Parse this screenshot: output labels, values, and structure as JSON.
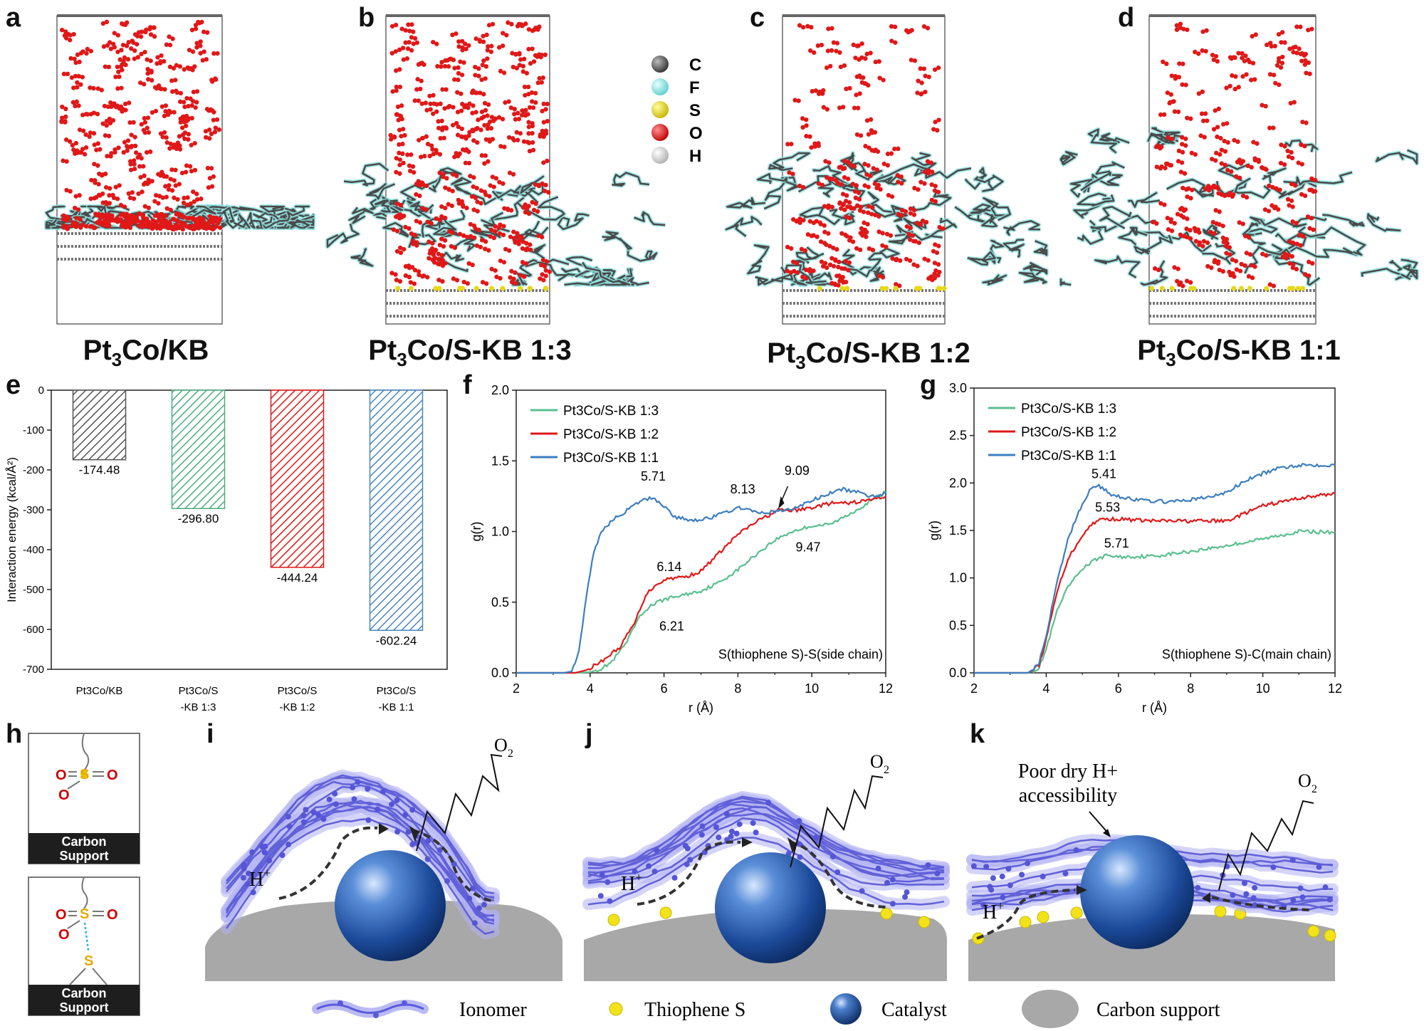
{
  "panels": {
    "a": "a",
    "b": "b",
    "c": "c",
    "d": "d",
    "e": "e",
    "f": "f",
    "g": "g",
    "h": "h",
    "i": "i",
    "j": "j",
    "k": "k"
  },
  "md": {
    "captions": [
      {
        "main": "Pt",
        "sub": "3",
        "rest": "Co/KB"
      },
      {
        "main": "Pt",
        "sub": "3",
        "rest": "Co/S-KB 1:3"
      },
      {
        "main": "Pt",
        "sub": "3",
        "rest": "Co/S-KB 1:2"
      },
      {
        "main": "Pt",
        "sub": "3",
        "rest": "Co/S-KB 1:1"
      }
    ],
    "atom_legend": [
      {
        "symbol": "C",
        "color": "#555555"
      },
      {
        "symbol": "F",
        "color": "#7fe6e6"
      },
      {
        "symbol": "S",
        "color": "#e6d81a"
      },
      {
        "symbol": "O",
        "color": "#e01818"
      },
      {
        "symbol": "H",
        "color": "#dcdcdc"
      }
    ]
  },
  "chart_data": [
    {
      "id": "e",
      "type": "bar",
      "categories": [
        "Pt3Co/KB",
        "Pt3Co/S-KB 1:3",
        "Pt3Co/S-KB 1:2",
        "Pt3Co/S-KB 1:1"
      ],
      "category_lines": [
        [
          "Pt3Co/KB"
        ],
        [
          "Pt3Co/S",
          "-KB 1:3"
        ],
        [
          "Pt3Co/S",
          "-KB 1:2"
        ],
        [
          "Pt3Co/S",
          "-KB 1:1"
        ]
      ],
      "values": [
        -174.48,
        -296.8,
        -444.24,
        -602.24
      ],
      "value_labels": [
        "-174.48",
        "-296.80",
        "-444.24",
        "-602.24"
      ],
      "colors": [
        "#555555",
        "#4cae7f",
        "#e01818",
        "#4a86c0"
      ],
      "ylabel": "Interaction energy (kcal/Å²)",
      "ylim": [
        -700,
        0
      ],
      "yticks": [
        0,
        -100,
        -200,
        -300,
        -400,
        -500,
        -600,
        -700
      ],
      "grid": false
    },
    {
      "id": "f",
      "type": "line",
      "xlabel": "r (Å)",
      "ylabel": "g(r)",
      "xlim": [
        2,
        12
      ],
      "ylim": [
        0,
        2.0
      ],
      "xticks": [
        2,
        4,
        6,
        8,
        10,
        12
      ],
      "yticks": [
        0.0,
        0.5,
        1.0,
        1.5,
        2.0
      ],
      "ytick_labels": [
        "0.0",
        "0.5",
        "1.0",
        "1.5",
        "2.0"
      ],
      "legend_position": "top-left",
      "annotation": "S(thiophene S)-S(side chain)",
      "series": [
        {
          "name": "Pt3Co/S-KB 1:3",
          "color": "#5bbf8f",
          "points": [
            [
              2,
              0
            ],
            [
              3.5,
              0
            ],
            [
              4.0,
              0.005
            ],
            [
              4.3,
              0.03
            ],
            [
              4.6,
              0.08
            ],
            [
              5.0,
              0.22
            ],
            [
              5.3,
              0.38
            ],
            [
              5.6,
              0.47
            ],
            [
              6.0,
              0.52
            ],
            [
              6.5,
              0.55
            ],
            [
              7.0,
              0.58
            ],
            [
              7.5,
              0.64
            ],
            [
              8.0,
              0.73
            ],
            [
              8.5,
              0.84
            ],
            [
              9.0,
              0.94
            ],
            [
              9.47,
              1.0
            ],
            [
              10.0,
              1.04
            ],
            [
              10.5,
              1.05
            ],
            [
              11.0,
              1.12
            ],
            [
              11.5,
              1.2
            ],
            [
              12,
              1.28
            ]
          ]
        },
        {
          "name": "Pt3Co/S-KB 1:2",
          "color": "#e01818",
          "points": [
            [
              2,
              0
            ],
            [
              3.6,
              0
            ],
            [
              3.9,
              0.02
            ],
            [
              4.3,
              0.08
            ],
            [
              4.8,
              0.18
            ],
            [
              5.2,
              0.35
            ],
            [
              5.5,
              0.55
            ],
            [
              5.8,
              0.63
            ],
            [
              6.14,
              0.67
            ],
            [
              6.6,
              0.68
            ],
            [
              7.0,
              0.72
            ],
            [
              7.5,
              0.85
            ],
            [
              8.0,
              0.98
            ],
            [
              8.5,
              1.07
            ],
            [
              9.09,
              1.15
            ],
            [
              9.6,
              1.15
            ],
            [
              10.0,
              1.17
            ],
            [
              10.5,
              1.2
            ],
            [
              11.0,
              1.2
            ],
            [
              11.5,
              1.22
            ],
            [
              12,
              1.25
            ]
          ]
        },
        {
          "name": "Pt3Co/S-KB 1:1",
          "color": "#3d7ebf",
          "points": [
            [
              2,
              0
            ],
            [
              3.3,
              0
            ],
            [
              3.5,
              0.01
            ],
            [
              3.7,
              0.15
            ],
            [
              3.9,
              0.55
            ],
            [
              4.1,
              0.85
            ],
            [
              4.3,
              1.0
            ],
            [
              4.6,
              1.08
            ],
            [
              5.0,
              1.15
            ],
            [
              5.4,
              1.22
            ],
            [
              5.71,
              1.24
            ],
            [
              6.0,
              1.18
            ],
            [
              6.3,
              1.1
            ],
            [
              6.8,
              1.08
            ],
            [
              7.3,
              1.1
            ],
            [
              7.8,
              1.15
            ],
            [
              8.13,
              1.17
            ],
            [
              8.5,
              1.13
            ],
            [
              9.0,
              1.14
            ],
            [
              9.5,
              1.16
            ],
            [
              10.0,
              1.22
            ],
            [
              10.5,
              1.27
            ],
            [
              10.8,
              1.3
            ],
            [
              11.2,
              1.28
            ],
            [
              11.6,
              1.25
            ],
            [
              12,
              1.27
            ]
          ]
        }
      ],
      "labels": [
        "5.71",
        "8.13",
        "9.09",
        "6.14",
        "6.21",
        "9.47"
      ]
    },
    {
      "id": "g",
      "type": "line",
      "xlabel": "r (Å)",
      "ylabel": "g(r)",
      "xlim": [
        2,
        12
      ],
      "ylim": [
        0,
        3.0
      ],
      "xticks": [
        2,
        4,
        6,
        8,
        10,
        12
      ],
      "yticks": [
        0.0,
        0.5,
        1.0,
        1.5,
        2.0,
        2.5,
        3.0
      ],
      "ytick_labels": [
        "0.0",
        "0.5",
        "1.0",
        "1.5",
        "2.0",
        "2.5",
        "3.0"
      ],
      "legend_position": "top-left",
      "annotation": "S(thiophene S)-C(main chain)",
      "series": [
        {
          "name": "Pt3Co/S-KB 1:3",
          "color": "#5bbf8f",
          "points": [
            [
              2,
              0
            ],
            [
              3.5,
              0
            ],
            [
              3.8,
              0.05
            ],
            [
              4.0,
              0.25
            ],
            [
              4.3,
              0.65
            ],
            [
              4.6,
              0.9
            ],
            [
              5.0,
              1.1
            ],
            [
              5.4,
              1.2
            ],
            [
              5.71,
              1.24
            ],
            [
              6.0,
              1.22
            ],
            [
              7.0,
              1.23
            ],
            [
              8.0,
              1.28
            ],
            [
              9.0,
              1.34
            ],
            [
              10.0,
              1.41
            ],
            [
              11.0,
              1.49
            ],
            [
              12,
              1.48
            ]
          ]
        },
        {
          "name": "Pt3Co/S-KB 1:2",
          "color": "#e01818",
          "points": [
            [
              2,
              0
            ],
            [
              3.5,
              0
            ],
            [
              3.8,
              0.08
            ],
            [
              4.0,
              0.35
            ],
            [
              4.3,
              0.85
            ],
            [
              4.6,
              1.2
            ],
            [
              5.0,
              1.45
            ],
            [
              5.3,
              1.58
            ],
            [
              5.53,
              1.62
            ],
            [
              6.0,
              1.62
            ],
            [
              7.0,
              1.6
            ],
            [
              8.0,
              1.6
            ],
            [
              9.0,
              1.6
            ],
            [
              9.5,
              1.68
            ],
            [
              10.0,
              1.76
            ],
            [
              11.0,
              1.84
            ],
            [
              12,
              1.89
            ]
          ]
        },
        {
          "name": "Pt3Co/S-KB 1:1",
          "color": "#3d7ebf",
          "points": [
            [
              2,
              0
            ],
            [
              3.5,
              0
            ],
            [
              3.8,
              0.1
            ],
            [
              4.0,
              0.4
            ],
            [
              4.3,
              0.95
            ],
            [
              4.6,
              1.4
            ],
            [
              4.9,
              1.7
            ],
            [
              5.2,
              1.92
            ],
            [
              5.41,
              1.98
            ],
            [
              5.8,
              1.88
            ],
            [
              6.5,
              1.82
            ],
            [
              7.5,
              1.8
            ],
            [
              8.5,
              1.85
            ],
            [
              9.0,
              1.9
            ],
            [
              9.5,
              2.02
            ],
            [
              10.0,
              2.1
            ],
            [
              10.5,
              2.16
            ],
            [
              11.0,
              2.19
            ],
            [
              12,
              2.19
            ]
          ]
        }
      ],
      "labels": [
        "5.41",
        "5.53",
        "5.71"
      ]
    }
  ],
  "schematic": {
    "h_support_label_1": "Carbon",
    "h_support_label_2": "Support",
    "o2": "O",
    "o2_sub": "2",
    "hplus": "H",
    "hplus_sup": "+",
    "poor_dry_1": "Poor dry H+",
    "poor_dry_2": "accessibility",
    "legend": [
      {
        "key": "ionomer",
        "label": "Ionomer"
      },
      {
        "key": "thiophene",
        "label": "Thiophene S"
      },
      {
        "key": "catalyst",
        "label": "Catalyst"
      },
      {
        "key": "carbon",
        "label": "Carbon support"
      }
    ]
  }
}
